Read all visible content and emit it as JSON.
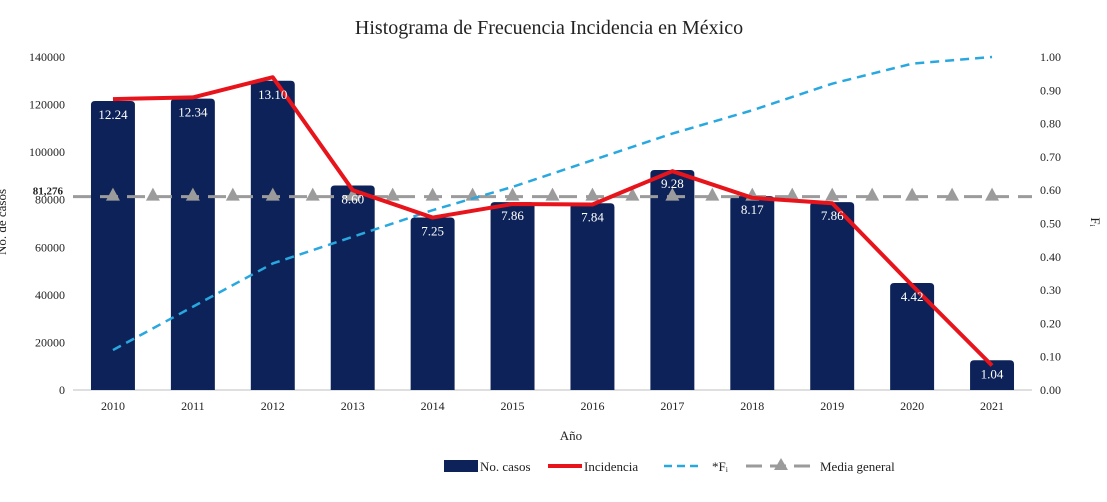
{
  "chart_data": {
    "type": "bar",
    "title": "Histograma de Frecuencia Incidencia en México",
    "xlabel": "Año",
    "ylabel": "No. de casos",
    "y2label": "Fᵢ",
    "ylim": [
      0,
      140000
    ],
    "y2lim": [
      0,
      1.0
    ],
    "yticks": [
      "0",
      "20000",
      "40000",
      "60000",
      "80000",
      "100000",
      "120000",
      "140000"
    ],
    "y2ticks": [
      "0.00",
      "0.10",
      "0.20",
      "0.30",
      "0.40",
      "0.50",
      "0.60",
      "0.70",
      "0.80",
      "0.90",
      "1.00"
    ],
    "categories": [
      "2010",
      "2011",
      "2012",
      "2013",
      "2014",
      "2015",
      "2016",
      "2017",
      "2018",
      "2019",
      "2020",
      "2021"
    ],
    "series": [
      {
        "name": "No. casos",
        "axis": "left",
        "values": [
          121500,
          122500,
          130000,
          86000,
          72500,
          79000,
          78500,
          92500,
          81500,
          79000,
          45000,
          12500
        ],
        "labels": [
          "12.24",
          "12.34",
          "13.10",
          "8.60",
          "7.25",
          "7.86",
          "7.84",
          "9.28",
          "8.17",
          "7.86",
          "4.42",
          "1.04"
        ],
        "color": "#0d2258"
      },
      {
        "name": "Incidencia",
        "axis": "left",
        "values": [
          122300,
          123000,
          131500,
          84000,
          72500,
          78200,
          78000,
          92000,
          80800,
          78500,
          44000,
          10300
        ],
        "color": "#e8141c"
      },
      {
        "name": "*Fᵢ",
        "axis": "right",
        "values": [
          0.12,
          0.25,
          0.38,
          0.46,
          0.54,
          0.61,
          0.69,
          0.77,
          0.84,
          0.92,
          0.98,
          1.0
        ],
        "x_offset": 0.5,
        "color": "#29a8e0"
      },
      {
        "name": "Media general",
        "axis": "left",
        "value": 81276,
        "label": "81,276",
        "color": "#9b9b9b"
      }
    ],
    "legend_position": "bottom-right"
  }
}
